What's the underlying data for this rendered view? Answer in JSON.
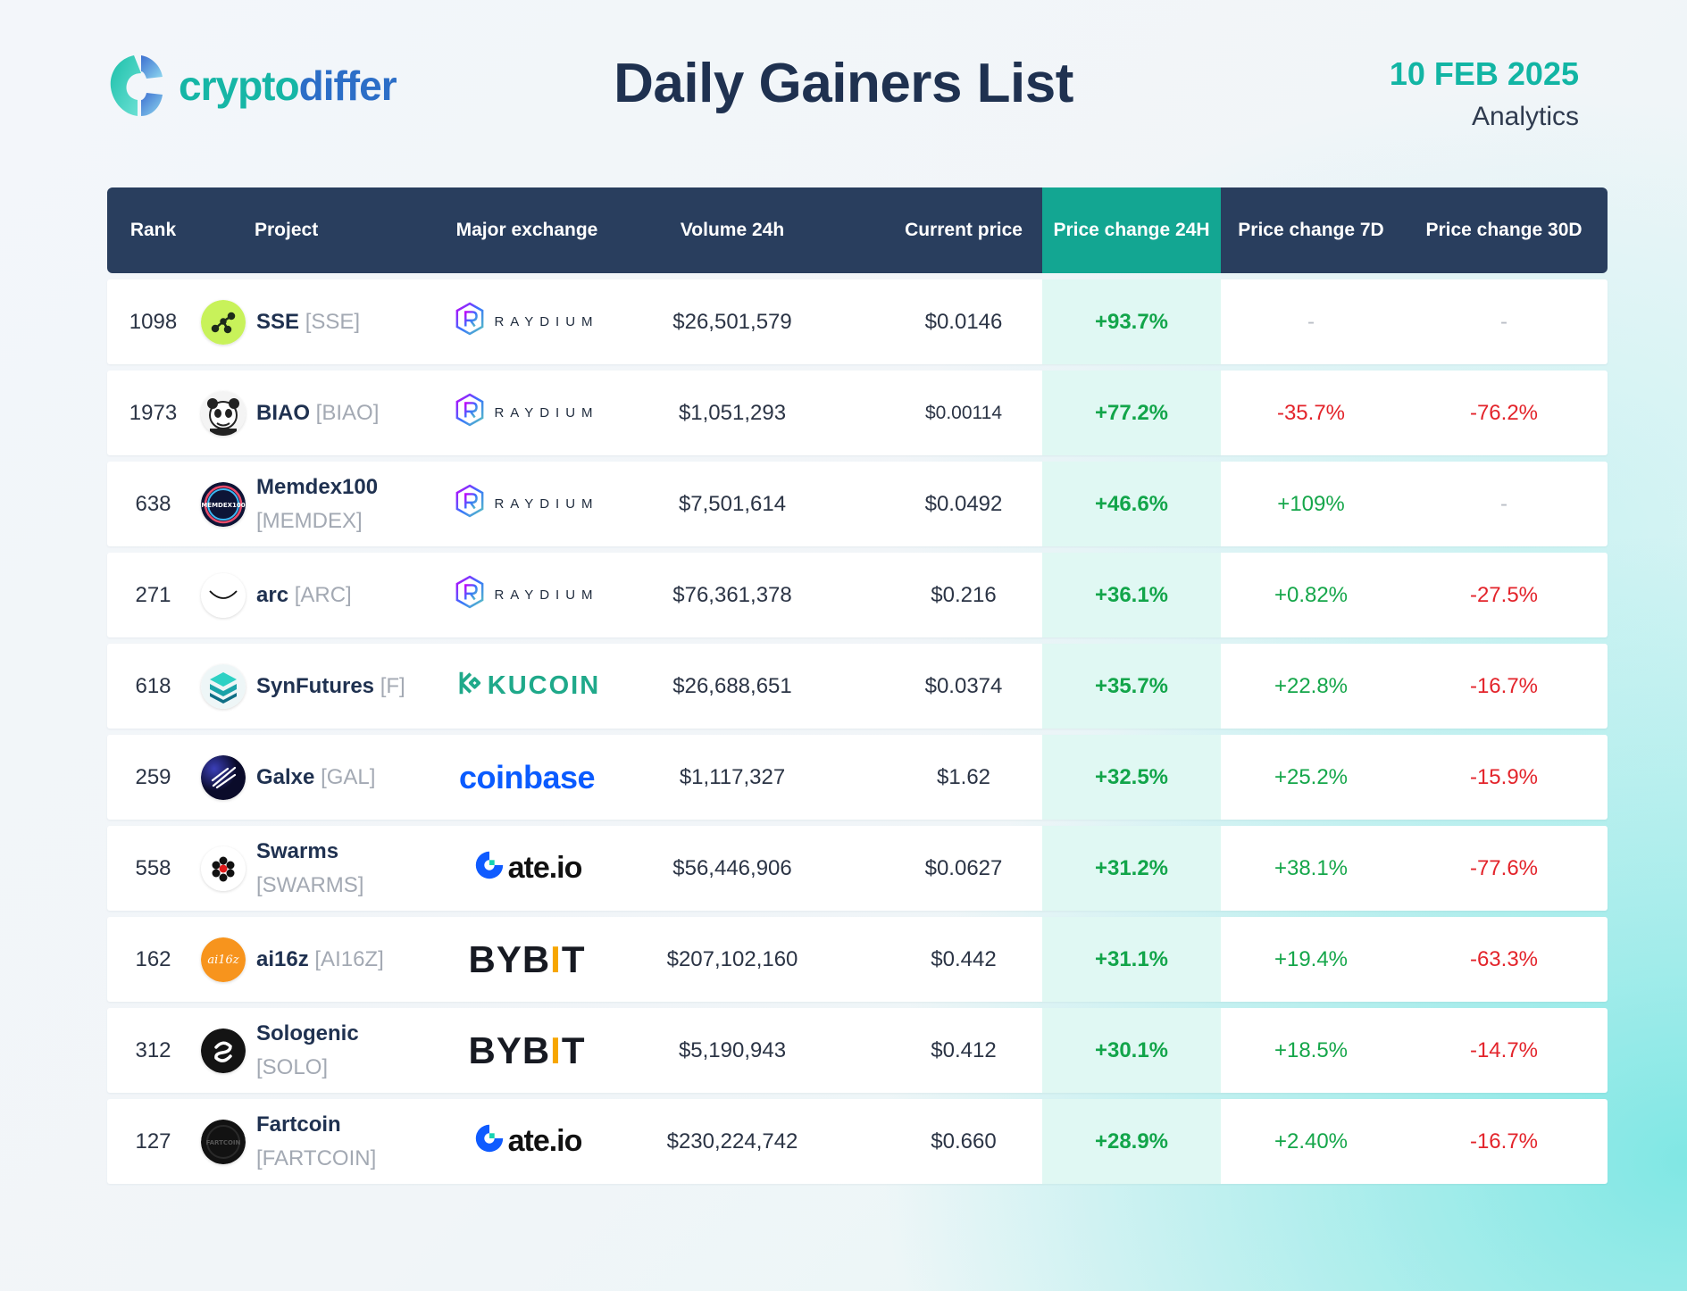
{
  "brand": {
    "name_part1": "crypto",
    "name_part2": "differ"
  },
  "title": "Daily Gainers List",
  "date": "10 FEB 2025",
  "subtitle": "Analytics",
  "columns": [
    "Rank",
    "Project",
    "Major exchange",
    "Volume 24h",
    "Current price",
    "Price change 24H",
    "Price change 7D",
    "Price change 30D"
  ],
  "colors": {
    "header_bg": "#293e5e",
    "highlight": "#13a692",
    "highlight_cell": "#e0f8f3",
    "positive": "#15a64a",
    "negative": "#e3242b"
  },
  "rows": [
    {
      "rank": "1098",
      "name": "SSE",
      "symbol": "[SSE]",
      "icon": "sse-icon",
      "exchange": "raydium",
      "exchange_label": "RAYDIUM",
      "volume": "$26,501,579",
      "price": "$0.0146",
      "change_24h": "+93.7%",
      "change_7d": "-",
      "change_30d": "-"
    },
    {
      "rank": "1973",
      "name": "BIAO",
      "symbol": "[BIAO]",
      "icon": "biao-icon",
      "exchange": "raydium",
      "exchange_label": "RAYDIUM",
      "volume": "$1,051,293",
      "price": "$0.00114",
      "change_24h": "+77.2%",
      "change_7d": "-35.7%",
      "change_30d": "-76.2%"
    },
    {
      "rank": "638",
      "name": "Memdex100",
      "symbol": "[MEMDEX]",
      "icon": "memdex-icon",
      "exchange": "raydium",
      "exchange_label": "RAYDIUM",
      "volume": "$7,501,614",
      "price": "$0.0492",
      "change_24h": "+46.6%",
      "change_7d": "+109%",
      "change_30d": "-"
    },
    {
      "rank": "271",
      "name": "arc",
      "symbol": "[ARC]",
      "icon": "arc-icon",
      "exchange": "raydium",
      "exchange_label": "RAYDIUM",
      "volume": "$76,361,378",
      "price": "$0.216",
      "change_24h": "+36.1%",
      "change_7d": "+0.82%",
      "change_30d": "-27.5%"
    },
    {
      "rank": "618",
      "name": "SynFutures",
      "symbol": "[F]",
      "icon": "synfutures-icon",
      "exchange": "kucoin",
      "exchange_label": "KUCOIN",
      "volume": "$26,688,651",
      "price": "$0.0374",
      "change_24h": "+35.7%",
      "change_7d": "+22.8%",
      "change_30d": "-16.7%"
    },
    {
      "rank": "259",
      "name": "Galxe",
      "symbol": "[GAL]",
      "icon": "galxe-icon",
      "exchange": "coinbase",
      "exchange_label": "coinbase",
      "volume": "$1,117,327",
      "price": "$1.62",
      "change_24h": "+32.5%",
      "change_7d": "+25.2%",
      "change_30d": "-15.9%"
    },
    {
      "rank": "558",
      "name": "Swarms",
      "symbol": "[SWARMS]",
      "icon": "swarms-icon",
      "exchange": "gate",
      "exchange_label": "Gate.io",
      "volume": "$56,446,906",
      "price": "$0.0627",
      "change_24h": "+31.2%",
      "change_7d": "+38.1%",
      "change_30d": "-77.6%"
    },
    {
      "rank": "162",
      "name": "ai16z",
      "symbol": "[AI16Z]",
      "icon": "ai16z-icon",
      "exchange": "bybit",
      "exchange_label": "BYBIT",
      "volume": "$207,102,160",
      "price": "$0.442",
      "change_24h": "+31.1%",
      "change_7d": "+19.4%",
      "change_30d": "-63.3%"
    },
    {
      "rank": "312",
      "name": "Sologenic",
      "symbol": "[SOLO]",
      "icon": "sologenic-icon",
      "exchange": "bybit",
      "exchange_label": "BYBIT",
      "volume": "$5,190,943",
      "price": "$0.412",
      "change_24h": "+30.1%",
      "change_7d": "+18.5%",
      "change_30d": "-14.7%"
    },
    {
      "rank": "127",
      "name": "Fartcoin",
      "symbol": "[FARTCOIN]",
      "icon": "fartcoin-icon",
      "exchange": "gate",
      "exchange_label": "Gate.io",
      "volume": "$230,224,742",
      "price": "$0.660",
      "change_24h": "+28.9%",
      "change_7d": "+2.40%",
      "change_30d": "-16.7%"
    }
  ]
}
